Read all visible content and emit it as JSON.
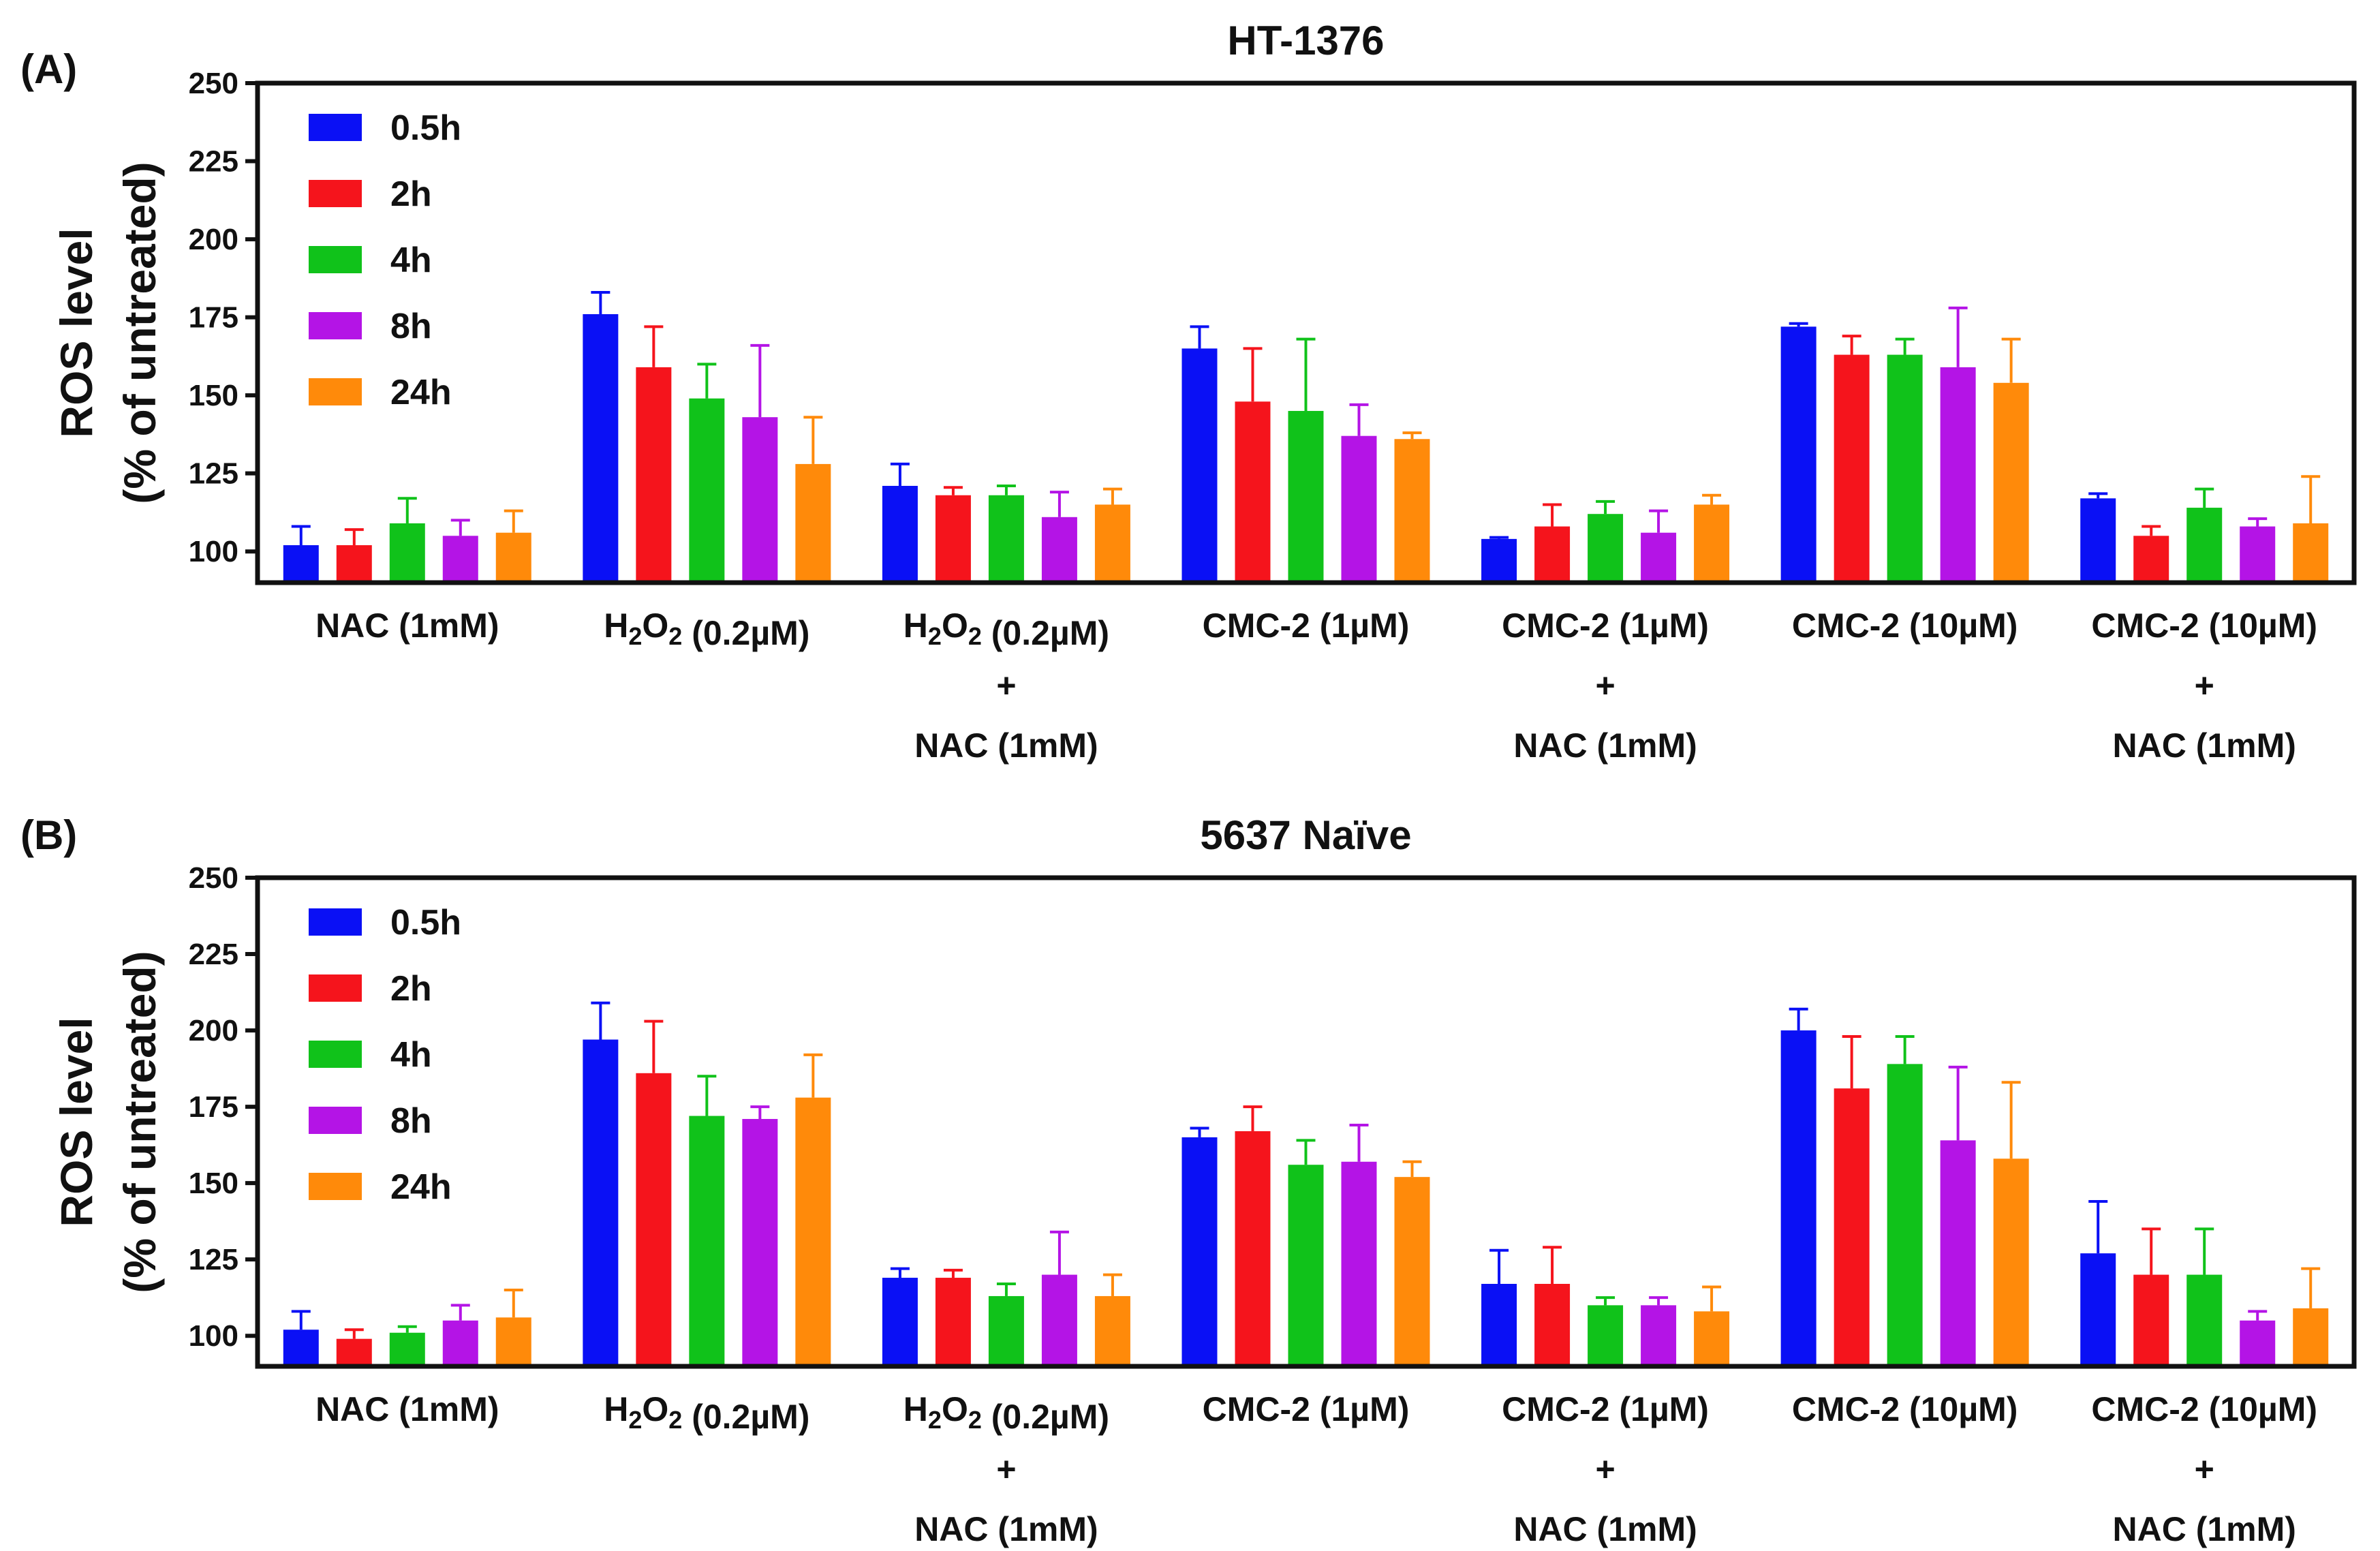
{
  "colors": {
    "0.5h": "#0a10f5",
    "2h": "#f5141c",
    "4h": "#10c21a",
    "8h": "#b414e6",
    "24h": "#ff8a0a",
    "axis": "#111111"
  },
  "chart_data": [
    {
      "type": "bar",
      "panel_label": "(A)",
      "title": "HT-1376",
      "ylabel": [
        "ROS level",
        "(% of untreated)"
      ],
      "ylim": [
        90,
        250
      ],
      "yticks": [
        "100",
        "125",
        "150",
        "175",
        "200",
        "225",
        "250"
      ],
      "legend_position": "top-left",
      "categories": [
        [
          "NAC (1mM)"
        ],
        [
          "H2O2 (0.2µM)"
        ],
        [
          "H2O2 (0.2µM)",
          "+",
          "NAC (1mM)"
        ],
        [
          "CMC-2 (1µM)"
        ],
        [
          "CMC-2 (1µM)",
          "+",
          "NAC (1mM)"
        ],
        [
          "CMC-2 (10µM)"
        ],
        [
          "CMC-2 (10µM)",
          "+",
          "NAC (1mM)"
        ]
      ],
      "series": [
        {
          "name": "0.5h",
          "values": [
            102,
            176,
            121,
            165,
            104,
            172,
            117
          ],
          "errors": [
            6,
            7,
            7,
            7,
            0.5,
            1,
            1.5
          ]
        },
        {
          "name": "2h",
          "values": [
            102,
            159,
            118,
            148,
            108,
            163,
            105
          ],
          "errors": [
            5,
            13,
            2.5,
            17,
            7,
            6,
            3
          ]
        },
        {
          "name": "4h",
          "values": [
            109,
            149,
            118,
            145,
            112,
            163,
            114
          ],
          "errors": [
            8,
            11,
            3,
            23,
            4,
            5,
            6
          ]
        },
        {
          "name": "8h",
          "values": [
            105,
            143,
            111,
            137,
            106,
            159,
            108
          ],
          "errors": [
            5,
            23,
            8,
            10,
            7,
            19,
            2.5
          ]
        },
        {
          "name": "24h",
          "values": [
            106,
            128,
            115,
            136,
            115,
            154,
            109
          ],
          "errors": [
            7,
            15,
            5,
            2,
            3,
            14,
            15
          ]
        }
      ]
    },
    {
      "type": "bar",
      "panel_label": "(B)",
      "title": "5637 Naïve",
      "ylabel": [
        "ROS level",
        "(% of untreated)"
      ],
      "ylim": [
        90,
        250
      ],
      "yticks": [
        "100",
        "125",
        "150",
        "175",
        "200",
        "225",
        "250"
      ],
      "legend_position": "top-left",
      "categories": [
        [
          "NAC (1mM)"
        ],
        [
          "H2O2 (0.2µM)"
        ],
        [
          "H2O2 (0.2µM)",
          "+",
          "NAC (1mM)"
        ],
        [
          "CMC-2 (1µM)"
        ],
        [
          "CMC-2 (1µM)",
          "+",
          "NAC (1mM)"
        ],
        [
          "CMC-2 (10µM)"
        ],
        [
          "CMC-2 (10µM)",
          "+",
          "NAC (1mM)"
        ]
      ],
      "series": [
        {
          "name": "0.5h",
          "values": [
            102,
            197,
            119,
            165,
            117,
            200,
            127
          ],
          "errors": [
            6,
            12,
            3,
            3,
            11,
            7,
            17
          ]
        },
        {
          "name": "2h",
          "values": [
            99,
            186,
            119,
            167,
            117,
            181,
            120
          ],
          "errors": [
            3,
            17,
            2.5,
            8,
            12,
            17,
            15
          ]
        },
        {
          "name": "4h",
          "values": [
            101,
            172,
            113,
            156,
            110,
            189,
            120
          ],
          "errors": [
            2,
            13,
            4,
            8,
            2.5,
            9,
            15
          ]
        },
        {
          "name": "8h",
          "values": [
            105,
            171,
            120,
            157,
            110,
            164,
            105
          ],
          "errors": [
            5,
            4,
            14,
            12,
            2.5,
            24,
            3
          ]
        },
        {
          "name": "24h",
          "values": [
            106,
            178,
            113,
            152,
            108,
            158,
            109
          ],
          "errors": [
            9,
            14,
            7,
            5,
            8,
            25,
            13
          ]
        }
      ]
    }
  ]
}
